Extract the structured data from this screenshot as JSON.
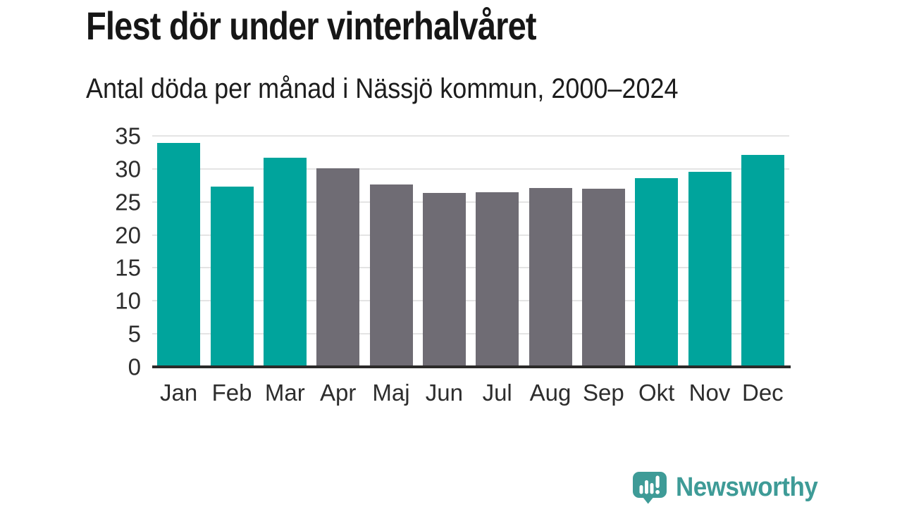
{
  "header": {
    "title": "Flest dör under vinterhalvåret",
    "subtitle": "Antal döda per månad i Nässjö kommun, 2000–2024"
  },
  "colors": {
    "teal": "#00a49c",
    "gray": "#6f6c74",
    "gridline": "#e4e4e4",
    "axis_line": "#2b2a29",
    "title_text": "#161616",
    "tick_text": "#2d2d2d",
    "logo_teal": "#3e9b97"
  },
  "chart_data": {
    "type": "bar",
    "title": "Flest dör under vinterhalvåret",
    "subtitle": "Antal döda per månad i Nässjö kommun, 2000–2024",
    "categories": [
      "Jan",
      "Feb",
      "Mar",
      "Apr",
      "Maj",
      "Jun",
      "Jul",
      "Aug",
      "Sep",
      "Okt",
      "Nov",
      "Dec"
    ],
    "values": [
      33.9,
      27.3,
      31.7,
      30.1,
      27.6,
      26.4,
      26.5,
      27.1,
      27.0,
      28.6,
      29.6,
      32.1
    ],
    "bar_color_keys": [
      "teal",
      "teal",
      "teal",
      "gray",
      "gray",
      "gray",
      "gray",
      "gray",
      "gray",
      "teal",
      "teal",
      "teal"
    ],
    "xlabel": "",
    "ylabel": "",
    "ylim": [
      0,
      35
    ],
    "yticks": [
      0,
      5,
      10,
      15,
      20,
      25,
      30,
      35
    ],
    "grid": true,
    "legend": false
  },
  "footer": {
    "brand_name": "Newsworthy",
    "brand_icon": "newsworthy-speech-bubble-barchart-icon"
  }
}
